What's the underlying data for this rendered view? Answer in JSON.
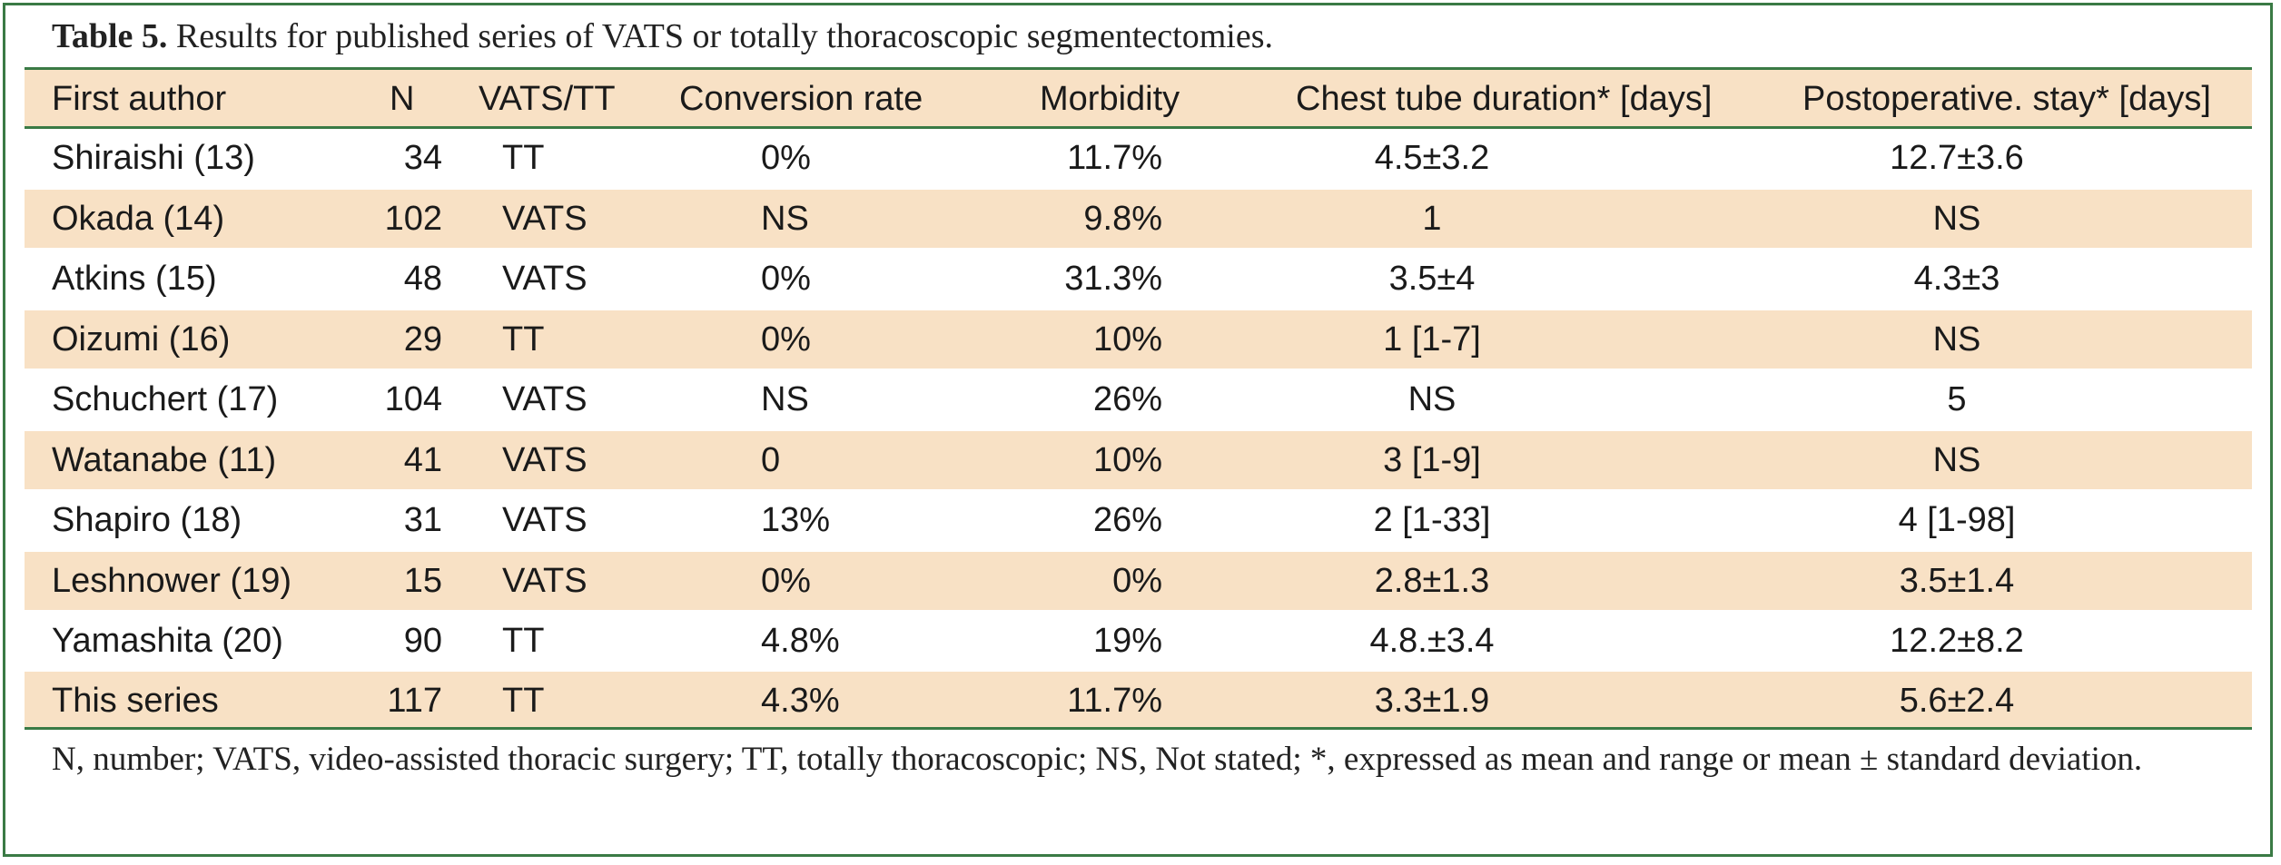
{
  "table": {
    "caption_label": "Table 5.",
    "caption_text": " Results for published series of VATS or totally thoracoscopic segmentectomies.",
    "headers": {
      "author": "First author",
      "n": "N",
      "vats_tt": "VATS/TT",
      "conversion": "Conversion rate",
      "morbidity": "Morbidity",
      "chest_tube": "Chest tube duration* [days]",
      "postop_stay": "Postoperative. stay* [days]"
    },
    "rows": [
      {
        "author": "Shiraishi (13)",
        "n": "34",
        "vats_tt": "TT",
        "conversion": "0%",
        "morbidity": "11.7%",
        "chest_tube": "4.5±3.2",
        "postop_stay": "12.7±3.6"
      },
      {
        "author": "Okada (14)",
        "n": "102",
        "vats_tt": "VATS",
        "conversion": "NS",
        "morbidity": "9.8%",
        "chest_tube": "1",
        "postop_stay": "NS"
      },
      {
        "author": "Atkins (15)",
        "n": "48",
        "vats_tt": "VATS",
        "conversion": "0%",
        "morbidity": "31.3%",
        "chest_tube": "3.5±4",
        "postop_stay": "4.3±3"
      },
      {
        "author": "Oizumi (16)",
        "n": "29",
        "vats_tt": "TT",
        "conversion": "0%",
        "morbidity": "10%",
        "chest_tube": "1 [1-7]",
        "postop_stay": "NS"
      },
      {
        "author": "Schuchert (17)",
        "n": "104",
        "vats_tt": "VATS",
        "conversion": "NS",
        "morbidity": "26%",
        "chest_tube": "NS",
        "postop_stay": "5"
      },
      {
        "author": "Watanabe (11)",
        "n": "41",
        "vats_tt": "VATS",
        "conversion": "0",
        "morbidity": "10%",
        "chest_tube": "3 [1-9]",
        "postop_stay": "NS"
      },
      {
        "author": "Shapiro (18)",
        "n": "31",
        "vats_tt": "VATS",
        "conversion": "13%",
        "morbidity": "26%",
        "chest_tube": "2 [1-33]",
        "postop_stay": "4 [1-98]"
      },
      {
        "author": "Leshnower (19)",
        "n": "15",
        "vats_tt": "VATS",
        "conversion": "0%",
        "morbidity": "0%",
        "chest_tube": "2.8±1.3",
        "postop_stay": "3.5±1.4"
      },
      {
        "author": "Yamashita (20)",
        "n": "90",
        "vats_tt": "TT",
        "conversion": "4.8%",
        "morbidity": "19%",
        "chest_tube": "4.8.±3.4",
        "postop_stay": "12.2±8.2"
      },
      {
        "author": "This series",
        "n": "117",
        "vats_tt": "TT",
        "conversion": "4.3%",
        "morbidity": "11.7%",
        "chest_tube": "3.3±1.9",
        "postop_stay": "5.6±2.4"
      }
    ],
    "footnote": "N, number; VATS, video-assisted thoracic surgery; TT, totally thoracoscopic; NS, Not stated; *, expressed as mean and range or mean ± standard deviation."
  },
  "colors": {
    "frame_green": "#3a7a45",
    "row_shade": "#f8e1c5"
  }
}
